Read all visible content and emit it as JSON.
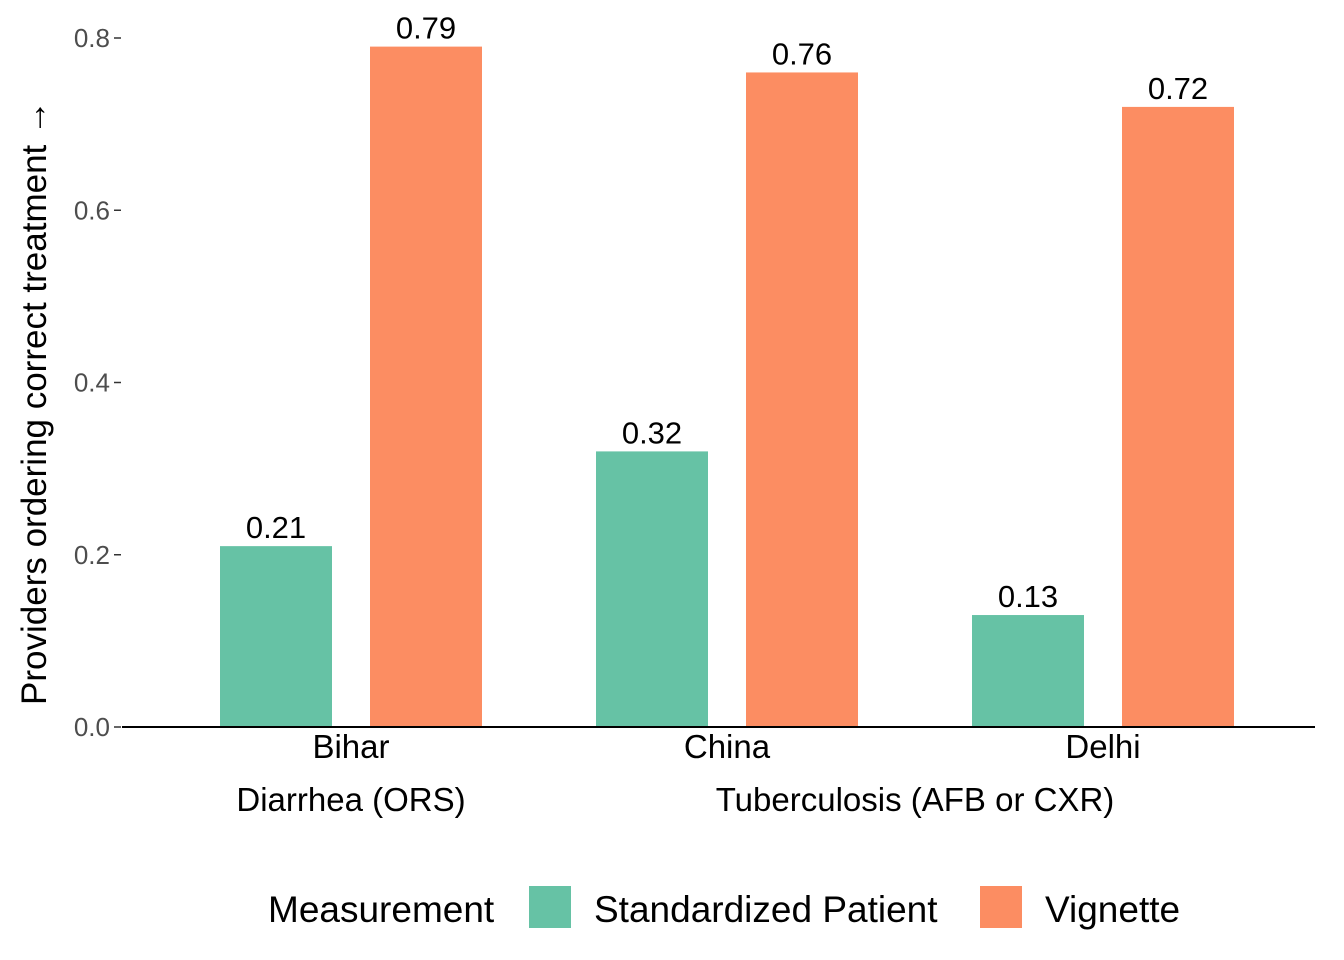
{
  "chart_data": {
    "type": "bar",
    "categories": [
      "Bihar",
      "China",
      "Delhi"
    ],
    "group_labels": [
      {
        "label": "Diarrhea (ORS)",
        "categories": [
          "Bihar"
        ]
      },
      {
        "label": "Tuberculosis (AFB or CXR)",
        "categories": [
          "China",
          "Delhi"
        ]
      }
    ],
    "series": [
      {
        "name": "Standardized Patient",
        "values": [
          0.21,
          0.32,
          0.13
        ],
        "color": "#66C2A5"
      },
      {
        "name": "Vignette",
        "values": [
          0.79,
          0.76,
          0.72
        ],
        "color": "#FC8D62"
      }
    ],
    "data_labels": [
      [
        "0.21",
        "0.32",
        "0.13"
      ],
      [
        "0.79",
        "0.76",
        "0.72"
      ]
    ],
    "title": "",
    "xlabel": "",
    "ylabel": "Providers ordering correct treatment →",
    "ylim": [
      0,
      0.8
    ],
    "yticks": [
      0.0,
      0.2,
      0.4,
      0.6,
      0.8
    ],
    "ytick_labels": [
      "0.0",
      "0.2",
      "0.4",
      "0.6",
      "0.8"
    ],
    "grid": false,
    "legend": {
      "title": "Measurement",
      "position": "bottom"
    }
  }
}
